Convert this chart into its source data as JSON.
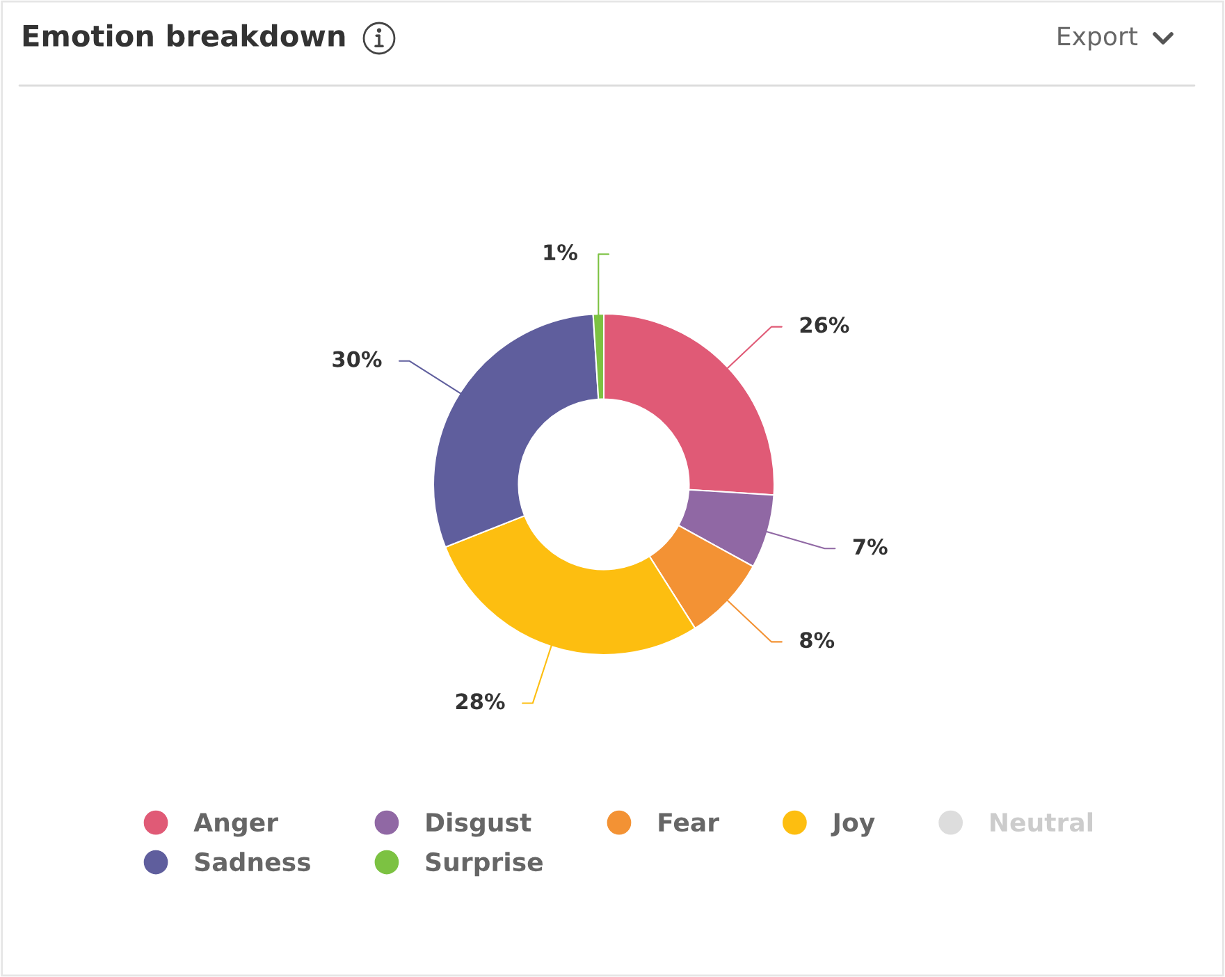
{
  "chart_data": {
    "type": "donut",
    "title": "Emotion breakdown",
    "categories": [
      "Anger",
      "Disgust",
      "Fear",
      "Joy",
      "Neutral",
      "Sadness",
      "Surprise"
    ],
    "values": [
      26,
      7,
      8,
      28,
      null,
      30,
      1
    ],
    "value_labels": [
      "26%",
      "7%",
      "8%",
      "28%",
      null,
      "30%",
      "1%"
    ],
    "colors": [
      "#e05a76",
      "#9068a4",
      "#f39234",
      "#fdbe10",
      "#dddddd",
      "#5f5e9d",
      "#7cc242"
    ],
    "legend": "bottom",
    "annotations": [
      "Export"
    ]
  }
}
